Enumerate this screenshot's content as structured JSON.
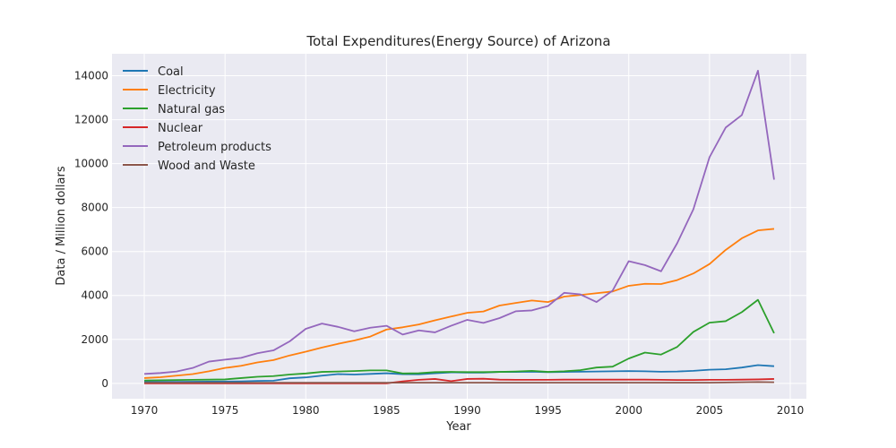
{
  "chart_data": {
    "type": "line",
    "title": "Total Expenditures(Energy Source) of Arizona",
    "xlabel": "Year",
    "ylabel": "Data / Million dollars",
    "xlim": [
      1968,
      2011
    ],
    "ylim": [
      -700,
      15000
    ],
    "xticks": [
      1970,
      1975,
      1980,
      1985,
      1990,
      1995,
      2000,
      2005,
      2010
    ],
    "yticks": [
      0,
      2000,
      4000,
      6000,
      8000,
      10000,
      12000,
      14000
    ],
    "grid": true,
    "legend_position": "top-left",
    "x": [
      1970,
      1971,
      1972,
      1973,
      1974,
      1975,
      1976,
      1977,
      1978,
      1979,
      1980,
      1981,
      1982,
      1983,
      1984,
      1985,
      1986,
      1987,
      1988,
      1989,
      1990,
      1991,
      1992,
      1993,
      1994,
      1995,
      1996,
      1997,
      1998,
      1999,
      2000,
      2001,
      2002,
      2003,
      2004,
      2005,
      2006,
      2007,
      2008,
      2009
    ],
    "series": [
      {
        "name": "Coal",
        "color": "#1f77b4",
        "values": [
          70,
          70,
          70,
          75,
          80,
          85,
          90,
          110,
          120,
          230,
          270,
          350,
          420,
          400,
          430,
          460,
          420,
          410,
          460,
          500,
          490,
          490,
          520,
          520,
          530,
          510,
          520,
          530,
          540,
          550,
          560,
          550,
          530,
          540,
          570,
          620,
          640,
          720,
          830,
          780
        ]
      },
      {
        "name": "Electricity",
        "color": "#ff7f0e",
        "values": [
          240,
          280,
          350,
          420,
          550,
          700,
          800,
          950,
          1060,
          1270,
          1440,
          1630,
          1800,
          1950,
          2130,
          2450,
          2550,
          2680,
          2870,
          3040,
          3210,
          3270,
          3540,
          3660,
          3770,
          3700,
          3950,
          4020,
          4100,
          4180,
          4440,
          4530,
          4520,
          4700,
          5000,
          5430,
          6070,
          6600,
          6960,
          7030
        ]
      },
      {
        "name": "Natural gas",
        "color": "#2ca02c",
        "values": [
          130,
          140,
          150,
          160,
          170,
          180,
          240,
          300,
          330,
          400,
          450,
          520,
          540,
          560,
          590,
          590,
          450,
          460,
          510,
          520,
          510,
          510,
          520,
          540,
          570,
          520,
          550,
          600,
          720,
          760,
          1130,
          1400,
          1310,
          1660,
          2340,
          2760,
          2830,
          3240,
          3800,
          2280
        ]
      },
      {
        "name": "Nuclear",
        "color": "#d62728",
        "values": [
          0,
          0,
          0,
          0,
          0,
          0,
          0,
          0,
          0,
          0,
          0,
          0,
          0,
          0,
          0,
          0,
          90,
          160,
          200,
          100,
          200,
          210,
          170,
          160,
          160,
          160,
          170,
          170,
          170,
          170,
          170,
          170,
          160,
          150,
          150,
          160,
          160,
          170,
          180,
          200
        ]
      },
      {
        "name": "Petroleum products",
        "color": "#9467bd",
        "values": [
          430,
          470,
          540,
          700,
          990,
          1080,
          1160,
          1370,
          1500,
          1910,
          2480,
          2720,
          2570,
          2370,
          2530,
          2620,
          2220,
          2410,
          2320,
          2620,
          2890,
          2750,
          2970,
          3280,
          3320,
          3520,
          4120,
          4050,
          3700,
          4220,
          5560,
          5380,
          5100,
          6380,
          7920,
          10290,
          11640,
          12210,
          14230,
          9270
        ]
      },
      {
        "name": "Wood and Waste",
        "color": "#8c564b",
        "values": [
          30,
          30,
          30,
          30,
          30,
          30,
          30,
          30,
          30,
          30,
          30,
          30,
          30,
          30,
          30,
          30,
          30,
          30,
          30,
          30,
          30,
          30,
          30,
          30,
          30,
          30,
          30,
          30,
          30,
          30,
          30,
          30,
          30,
          30,
          30,
          30,
          40,
          50,
          60,
          50
        ]
      }
    ]
  }
}
